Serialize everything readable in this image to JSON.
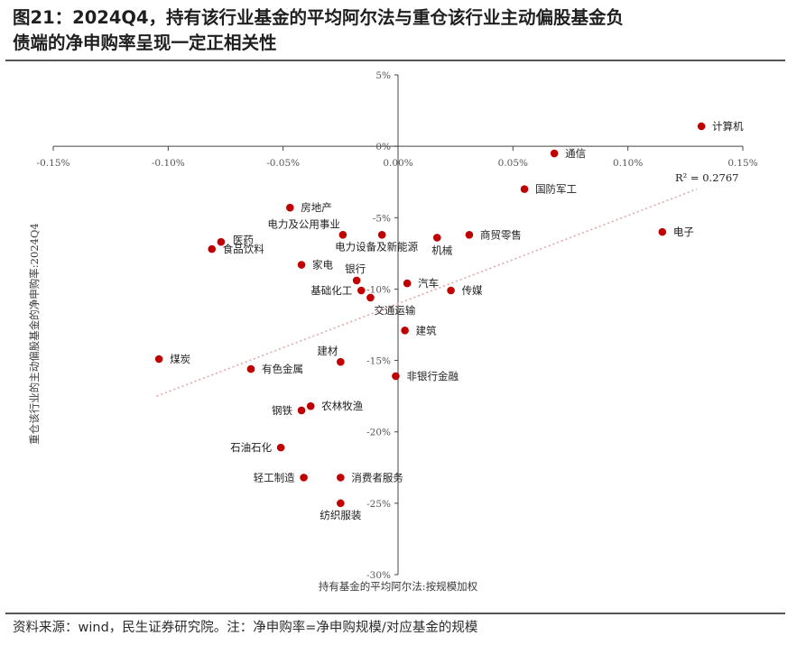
{
  "header": {
    "title_line1": "图21：2024Q4，持有该行业基金的平均阿尔法与重仓该行业主动偏股基金负",
    "title_line2": "债端的净申购率呈现一定正相关性"
  },
  "footer": {
    "source": "资料来源：wind，民生证券研究院。注：净申购率=净申购规模/对应基金的规模"
  },
  "colors": {
    "point": "#c00000",
    "trend": "#e3a7a7",
    "axis": "#444444"
  },
  "chart_data": {
    "type": "scatter",
    "title": "",
    "xlabel": "持有基金的平均阿尔法:按规模加权",
    "ylabel": "重仓该行业的主动偏股基金的净申购率:2024Q4",
    "xlim": [
      -0.0015,
      0.0015
    ],
    "ylim": [
      -0.3,
      0.05
    ],
    "x_ticks": [
      {
        "v": -0.0015,
        "label": "-0.15%"
      },
      {
        "v": -0.001,
        "label": "-0.10%"
      },
      {
        "v": -0.0005,
        "label": "-0.05%"
      },
      {
        "v": 0.0,
        "label": "0.00%"
      },
      {
        "v": 0.0005,
        "label": "0.05%"
      },
      {
        "v": 0.001,
        "label": "0.10%"
      },
      {
        "v": 0.0015,
        "label": "0.15%"
      }
    ],
    "y_ticks": [
      {
        "v": 0.05,
        "label": "5%"
      },
      {
        "v": 0.0,
        "label": "0%"
      },
      {
        "v": -0.05,
        "label": "-5%"
      },
      {
        "v": -0.1,
        "label": "-10%"
      },
      {
        "v": -0.15,
        "label": "-15%"
      },
      {
        "v": -0.2,
        "label": "-20%"
      },
      {
        "v": -0.25,
        "label": "-25%"
      },
      {
        "v": -0.3,
        "label": "-30%"
      }
    ],
    "grid": false,
    "legend": "none",
    "trendline": {
      "type": "linear",
      "r2_label": "R² = 0.2767",
      "from": [
        -0.00105,
        -0.175
      ],
      "to": [
        0.0013,
        -0.03
      ]
    },
    "points": [
      {
        "name": "计算机",
        "x": 0.00132,
        "y": 0.014,
        "anchor": "right"
      },
      {
        "name": "通信",
        "x": 0.00068,
        "y": -0.005,
        "anchor": "right"
      },
      {
        "name": "国防军工",
        "x": 0.00055,
        "y": -0.03,
        "anchor": "right"
      },
      {
        "name": "电子",
        "x": 0.00115,
        "y": -0.06,
        "anchor": "right"
      },
      {
        "name": "商贸零售",
        "x": 0.00031,
        "y": -0.062,
        "anchor": "right"
      },
      {
        "name": "机械",
        "x": 0.00017,
        "y": -0.064,
        "anchor": "below-right"
      },
      {
        "name": "电力设备及新能源",
        "x": -7e-05,
        "y": -0.062,
        "anchor": "below-right"
      },
      {
        "name": "电力及公用事业",
        "x": -0.00024,
        "y": -0.062,
        "anchor": "above-left"
      },
      {
        "name": "房地产",
        "x": -0.00047,
        "y": -0.043,
        "anchor": "right"
      },
      {
        "name": "医药",
        "x": -0.00077,
        "y": -0.067,
        "anchor": "right"
      },
      {
        "name": "食品饮料",
        "x": -0.00081,
        "y": -0.072,
        "anchor": "right-below"
      },
      {
        "name": "家电",
        "x": -0.00042,
        "y": -0.083,
        "anchor": "right"
      },
      {
        "name": "银行",
        "x": -0.00018,
        "y": -0.094,
        "anchor": "above-right"
      },
      {
        "name": "基础化工",
        "x": -0.00016,
        "y": -0.101,
        "anchor": "left"
      },
      {
        "name": "交通运输",
        "x": -0.00012,
        "y": -0.106,
        "anchor": "below-right"
      },
      {
        "name": "汽车",
        "x": 4e-05,
        "y": -0.096,
        "anchor": "right"
      },
      {
        "name": "传媒",
        "x": 0.00023,
        "y": -0.101,
        "anchor": "right"
      },
      {
        "name": "建筑",
        "x": 3e-05,
        "y": -0.129,
        "anchor": "right"
      },
      {
        "name": "煤炭",
        "x": -0.00104,
        "y": -0.149,
        "anchor": "right"
      },
      {
        "name": "建材",
        "x": -0.00025,
        "y": -0.151,
        "anchor": "above-left"
      },
      {
        "name": "有色金属",
        "x": -0.00064,
        "y": -0.156,
        "anchor": "right"
      },
      {
        "name": "非银行金融",
        "x": -1e-05,
        "y": -0.161,
        "anchor": "right"
      },
      {
        "name": "农林牧渔",
        "x": -0.00038,
        "y": -0.182,
        "anchor": "right"
      },
      {
        "name": "钢铁",
        "x": -0.00042,
        "y": -0.185,
        "anchor": "left"
      },
      {
        "name": "石油石化",
        "x": -0.00051,
        "y": -0.211,
        "anchor": "left"
      },
      {
        "name": "轻工制造",
        "x": -0.00041,
        "y": -0.232,
        "anchor": "left"
      },
      {
        "name": "消费者服务",
        "x": -0.00025,
        "y": -0.232,
        "anchor": "right"
      },
      {
        "name": "纺织服装",
        "x": -0.00025,
        "y": -0.25,
        "anchor": "below"
      }
    ]
  }
}
